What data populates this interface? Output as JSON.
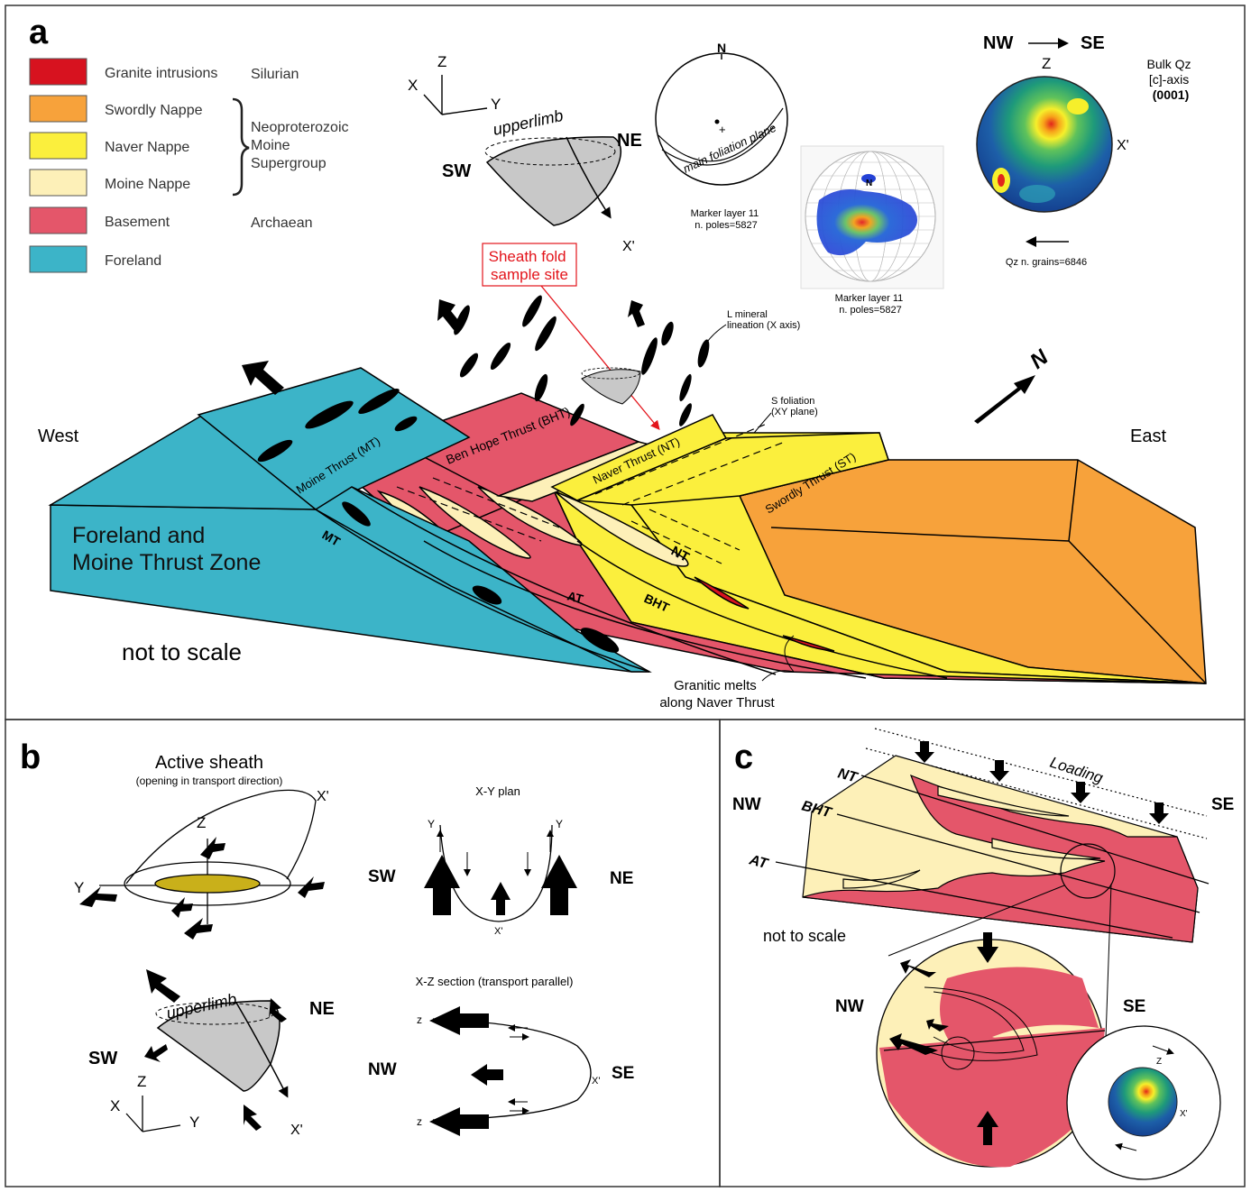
{
  "panel_a": {
    "letter": "a",
    "legend": [
      {
        "label": "Granite intrusions",
        "color": "#d7121f"
      },
      {
        "label": "Swordly Nappe",
        "color": "#f7a23b"
      },
      {
        "label": "Naver Nappe",
        "color": "#fbef3d"
      },
      {
        "label": "Moine Nappe",
        "color": "#fdf0b8"
      },
      {
        "label": "Basement",
        "color": "#e4566a"
      },
      {
        "label": "Foreland",
        "color": "#3cb4c8"
      }
    ],
    "ages": {
      "silurian": "Silurian",
      "neoproterozoic": [
        "Neoproterozoic",
        "Moine",
        "Supergroup"
      ],
      "archaean": "Archaean"
    },
    "axes_main": {
      "x": "X",
      "y": "Y",
      "z": "Z"
    },
    "sheath": {
      "upperlimb": "upperlimb",
      "sw": "SW",
      "ne": "NE",
      "x_prime": "X'"
    },
    "stereonet1": {
      "north": "N",
      "plane": "main foliation plane",
      "caption": [
        "Marker layer 11",
        "n. poles=5827"
      ]
    },
    "stereonet2": {
      "north": "N",
      "caption": [
        "Marker layer 11",
        "n. poles=5827"
      ]
    },
    "quartz": {
      "nw": "NW",
      "se": "SE",
      "z": "Z",
      "x_prime": "X'",
      "title": [
        "Bulk Qz",
        "[c]-axis",
        "(0001)"
      ],
      "caption": "Qz n. grains=6846"
    },
    "callout_sheath": [
      "Sheath fold",
      "sample site"
    ],
    "callout_lineation": [
      "L mineral",
      "lineation (X axis)"
    ],
    "callout_foliation": [
      "S foliation",
      "(XY plane)"
    ],
    "west": "West",
    "east": "East",
    "north_arrow": "N",
    "block_title": [
      "Foreland and",
      "Moine Thrust Zone"
    ],
    "not_to_scale": "not to scale",
    "granitic": [
      "Granitic melts",
      "along Naver Thrust"
    ],
    "thrust_labels": {
      "mt_plane": "Moine Thrust (MT)",
      "bht_plane": "Ben Hope Thrust (BHT)",
      "nt_plane": "Naver Thrust (NT)",
      "st_plane": "Swordly Thrust (ST)",
      "mt": "MT",
      "at": "AT",
      "bht": "BHT",
      "nt": "NT"
    },
    "colors": {
      "foreland": "#3cb4c8",
      "basement": "#e4566a",
      "moine": "#fdf0b8",
      "naver": "#fbef3d",
      "swordly": "#f7a23b",
      "granite": "#d7121f"
    }
  },
  "panel_b": {
    "letter": "b",
    "title": "Active sheath",
    "subtitle": "(opening in transport direction)",
    "z": "Z",
    "y": "Y",
    "x_prime": "X'",
    "upperlimb": "upperlimb",
    "sw": "SW",
    "ne": "NE",
    "axes": {
      "z": "Z",
      "x": "X",
      "y": "Y",
      "x_prime": "X'"
    },
    "xy_title": "X-Y plan",
    "xy": {
      "sw": "SW",
      "ne": "NE",
      "y_left": "Y",
      "y_right": "Y",
      "x_prime": "X'"
    },
    "xz_title": "X-Z section    (transport parallel)",
    "xz": {
      "nw": "NW",
      "se": "SE",
      "z_top": "z",
      "z_bottom": "z",
      "x_prime": "X'"
    }
  },
  "panel_c": {
    "letter": "c",
    "loading": "Loading",
    "nw": "NW",
    "se": "SE",
    "thrusts": [
      "NT",
      "BHT",
      "AT"
    ],
    "not_to_scale": "not to scale",
    "circle_nw": "NW",
    "circle_se": "SE",
    "z": "Z",
    "x_prime": "X'"
  }
}
